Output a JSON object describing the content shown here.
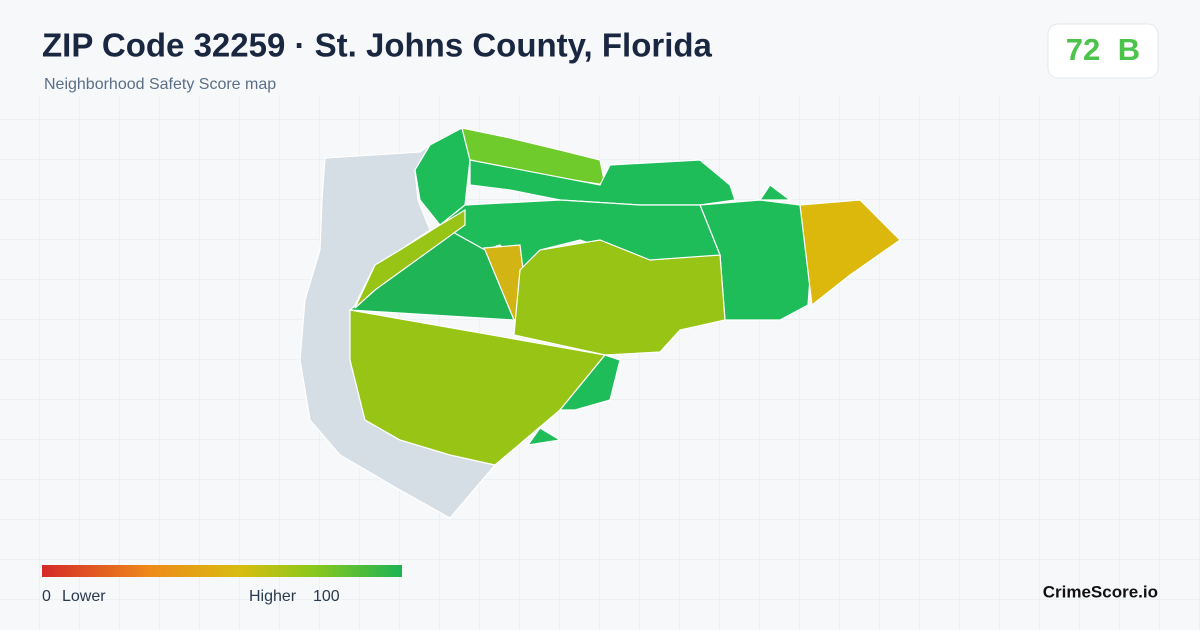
{
  "header": {
    "title": "ZIP Code 32259 · St. Johns County, Florida",
    "subtitle": "Neighborhood Safety Score map"
  },
  "score": {
    "value": 72,
    "grade": "B"
  },
  "legend": {
    "min": 0,
    "min_label": "Lower",
    "max_label": "Higher",
    "max": 100
  },
  "brand": "CrimeScore.io"
}
